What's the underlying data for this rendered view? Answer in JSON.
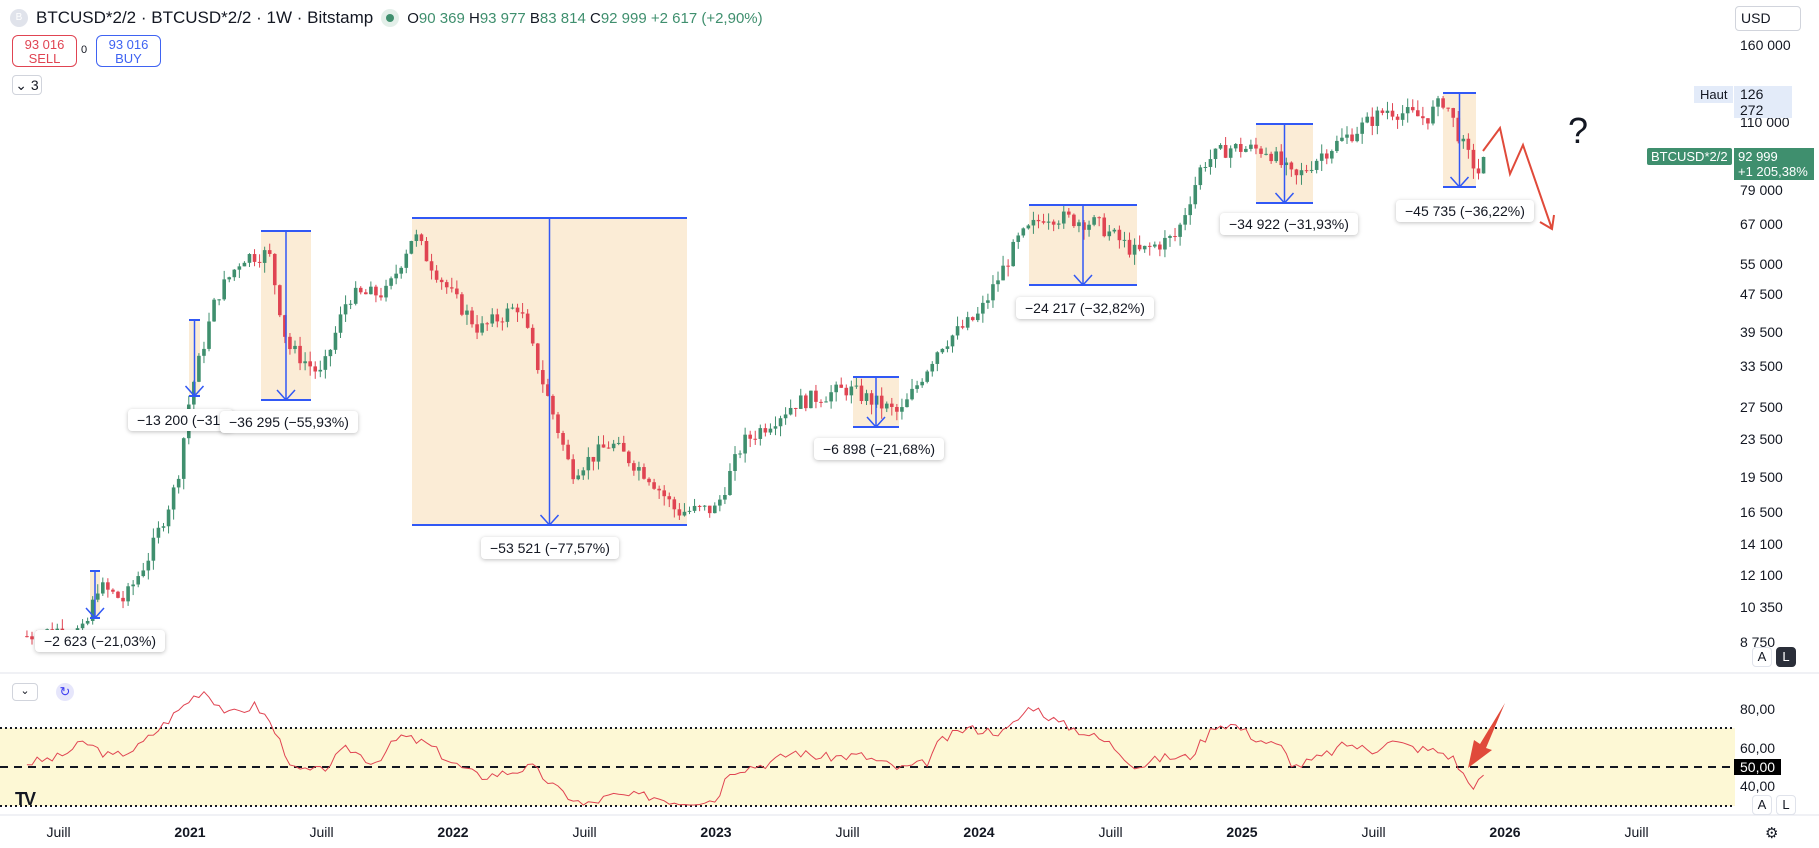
{
  "header": {
    "title": "BTCUSD*2/2 · BTCUSD*2/2 · 1W · Bitstamp",
    "logo_letter": "B",
    "o_label": "O",
    "o": "90 369",
    "h_label": "H",
    "h": "93 977",
    "b_label": "B",
    "b": "83 814",
    "c_label": "C",
    "c": "92 999",
    "change": "+2 617 (+2,90%)"
  },
  "trade": {
    "sell_price": "93 016",
    "sell_label": "SELL",
    "spread": "0",
    "buy_price": "93 016",
    "buy_label": "BUY"
  },
  "indicators_count": "3",
  "currency": "USD",
  "price_axis": [
    "160 000",
    "110 000",
    "79 000",
    "67 000",
    "55 000",
    "47 500",
    "39 500",
    "33 500",
    "27 500",
    "23 500",
    "19 500",
    "16 500",
    "14 100",
    "12 100",
    "10 350",
    "8 750"
  ],
  "price_axis_values": [
    160000,
    110000,
    79000,
    67000,
    55000,
    47500,
    39500,
    33500,
    27500,
    23500,
    19500,
    16500,
    14100,
    12100,
    10350,
    8750
  ],
  "high_label": "Haut",
  "high_value": "126 272",
  "symbol_tag": "BTCUSD*2/2",
  "last_price": "92 999",
  "last_change": "+1 205,38%",
  "scale_buttons": {
    "auto": "A",
    "log": "L"
  },
  "rsi_axis": [
    "80,00",
    "60,00",
    "50,00",
    "40,00"
  ],
  "rsi_axis_values": [
    80,
    60,
    50,
    40
  ],
  "time_axis": [
    {
      "t": "Juill",
      "v": 2020.5,
      "year": false
    },
    {
      "t": "2021",
      "v": 2021,
      "year": true
    },
    {
      "t": "Juill",
      "v": 2021.5,
      "year": false
    },
    {
      "t": "2022",
      "v": 2022,
      "year": true
    },
    {
      "t": "Juill",
      "v": 2022.5,
      "year": false
    },
    {
      "t": "2023",
      "v": 2023,
      "year": true
    },
    {
      "t": "Juill",
      "v": 2023.5,
      "year": false
    },
    {
      "t": "2024",
      "v": 2024,
      "year": true
    },
    {
      "t": "Juill",
      "v": 2024.5,
      "year": false
    },
    {
      "t": "2025",
      "v": 2025,
      "year": true
    },
    {
      "t": "Juill",
      "v": 2025.5,
      "year": false
    },
    {
      "t": "2026",
      "v": 2026,
      "year": true
    },
    {
      "t": "Juill",
      "v": 2026.5,
      "year": false
    }
  ],
  "measurements": [
    "−2 623 (−21,03%)",
    "−13 200 (−31,",
    "−36 295 (−55,93%)",
    "−53 521 (−77,57%)",
    "−6 898 (−21,68%)",
    "−24 217 (−32,82%)",
    "−34 922 (−31,93%)",
    "−45 735 (−36,22%)"
  ],
  "annotation_question": "?",
  "colors": {
    "up": "#3f8f6e",
    "down": "#e04452",
    "measure": "#3158f5",
    "box": "#fbecd6",
    "rsi": "#e04452",
    "rsi_band": "#fdf8d5",
    "arrow": "#e04a3a"
  },
  "chart_data": {
    "type": "candlestick",
    "price_anchors": [
      [
        2020.38,
        9000
      ],
      [
        2020.5,
        9300
      ],
      [
        2020.6,
        9200
      ],
      [
        2020.65,
        11500
      ],
      [
        2020.75,
        10700
      ],
      [
        2020.85,
        13500
      ],
      [
        2020.95,
        19000
      ],
      [
        2021.0,
        29000
      ],
      [
        2021.1,
        47000
      ],
      [
        2021.2,
        57000
      ],
      [
        2021.3,
        58000
      ],
      [
        2021.37,
        37000
      ],
      [
        2021.5,
        32000
      ],
      [
        2021.6,
        47000
      ],
      [
        2021.75,
        48000
      ],
      [
        2021.85,
        64000
      ],
      [
        2021.9,
        57000
      ],
      [
        2022.0,
        47000
      ],
      [
        2022.1,
        40000
      ],
      [
        2022.25,
        45000
      ],
      [
        2022.35,
        30000
      ],
      [
        2022.45,
        20000
      ],
      [
        2022.6,
        23000
      ],
      [
        2022.75,
        19500
      ],
      [
        2022.85,
        16500
      ],
      [
        2023.0,
        16700
      ],
      [
        2023.1,
        23000
      ],
      [
        2023.3,
        28000
      ],
      [
        2023.5,
        30000
      ],
      [
        2023.7,
        26500
      ],
      [
        2023.85,
        37000
      ],
      [
        2024.0,
        43000
      ],
      [
        2024.15,
        62000
      ],
      [
        2024.25,
        70000
      ],
      [
        2024.45,
        67000
      ],
      [
        2024.6,
        58000
      ],
      [
        2024.75,
        63000
      ],
      [
        2024.85,
        90000
      ],
      [
        2024.95,
        97000
      ],
      [
        2025.1,
        96000
      ],
      [
        2025.2,
        83000
      ],
      [
        2025.3,
        94000
      ],
      [
        2025.45,
        107000
      ],
      [
        2025.55,
        117000
      ],
      [
        2025.7,
        112000
      ],
      [
        2025.77,
        123000
      ],
      [
        2025.85,
        95000
      ],
      [
        2025.9,
        86000
      ],
      [
        2025.93,
        93000
      ]
    ],
    "rsi_anchors": [
      [
        2020.38,
        52
      ],
      [
        2020.5,
        55
      ],
      [
        2020.6,
        63
      ],
      [
        2020.7,
        55
      ],
      [
        2020.8,
        60
      ],
      [
        2020.9,
        72
      ],
      [
        2021.0,
        85
      ],
      [
        2021.05,
        90
      ],
      [
        2021.15,
        77
      ],
      [
        2021.25,
        82
      ],
      [
        2021.3,
        74
      ],
      [
        2021.4,
        48
      ],
      [
        2021.5,
        48
      ],
      [
        2021.6,
        60
      ],
      [
        2021.7,
        52
      ],
      [
        2021.8,
        66
      ],
      [
        2021.9,
        62
      ],
      [
        2022.0,
        52
      ],
      [
        2022.1,
        45
      ],
      [
        2022.2,
        47
      ],
      [
        2022.3,
        50
      ],
      [
        2022.4,
        38
      ],
      [
        2022.5,
        30
      ],
      [
        2022.6,
        35
      ],
      [
        2022.75,
        35
      ],
      [
        2022.85,
        32
      ],
      [
        2023.0,
        33
      ],
      [
        2023.05,
        48
      ],
      [
        2023.2,
        52
      ],
      [
        2023.3,
        58
      ],
      [
        2023.4,
        55
      ],
      [
        2023.55,
        56
      ],
      [
        2023.7,
        49
      ],
      [
        2023.8,
        52
      ],
      [
        2023.85,
        63
      ],
      [
        2023.95,
        70
      ],
      [
        2024.1,
        68
      ],
      [
        2024.2,
        82
      ],
      [
        2024.3,
        73
      ],
      [
        2024.4,
        68
      ],
      [
        2024.5,
        62
      ],
      [
        2024.6,
        50
      ],
      [
        2024.7,
        55
      ],
      [
        2024.8,
        55
      ],
      [
        2024.9,
        72
      ],
      [
        2024.97,
        72
      ],
      [
        2025.05,
        65
      ],
      [
        2025.15,
        60
      ],
      [
        2025.2,
        50
      ],
      [
        2025.3,
        55
      ],
      [
        2025.4,
        62
      ],
      [
        2025.5,
        58
      ],
      [
        2025.55,
        64
      ],
      [
        2025.65,
        60
      ],
      [
        2025.75,
        58
      ],
      [
        2025.8,
        55
      ],
      [
        2025.87,
        40
      ],
      [
        2025.93,
        45
      ]
    ],
    "rsi_bands": [
      70,
      50,
      30
    ]
  }
}
